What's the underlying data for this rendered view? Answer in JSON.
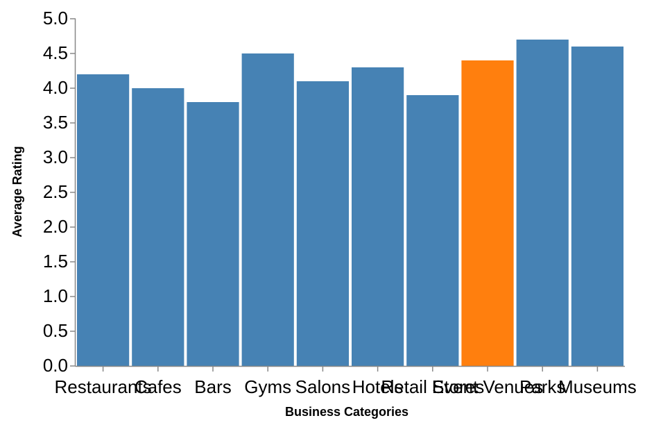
{
  "chart_data": {
    "type": "bar",
    "categories": [
      "Restaurants",
      "Cafes",
      "Bars",
      "Gyms",
      "Salons",
      "Hotels",
      "Retail Stores",
      "Event Venues",
      "Parks",
      "Museums"
    ],
    "values": [
      4.2,
      4.0,
      3.8,
      4.5,
      4.1,
      4.3,
      3.9,
      4.4,
      4.7,
      4.6
    ],
    "xlabel": "Business Categories",
    "ylabel": "Average Rating",
    "ylim": [
      0,
      5.0
    ],
    "yticks": [
      "0.0",
      "0.5",
      "1.0",
      "1.5",
      "2.0",
      "2.5",
      "3.0",
      "3.5",
      "4.0",
      "4.5",
      "5.0"
    ],
    "grid": false,
    "colors": {
      "default": "#4682b4",
      "highlight": "#ff7f0e"
    },
    "highlight_category": "Event Venues"
  }
}
